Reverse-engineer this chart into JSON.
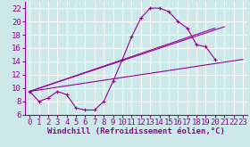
{
  "background_color": "#cce8e8",
  "grid_color": "#ffffff",
  "line_color": "#990099",
  "xlabel": "Windchill (Refroidissement éolien,°C)",
  "xlim": [
    -0.5,
    23.5
  ],
  "ylim": [
    6,
    23
  ],
  "xticks": [
    0,
    1,
    2,
    3,
    4,
    5,
    6,
    7,
    8,
    9,
    10,
    11,
    12,
    13,
    14,
    15,
    16,
    17,
    18,
    19,
    20,
    21,
    22,
    23
  ],
  "yticks": [
    6,
    8,
    10,
    12,
    14,
    16,
    18,
    20,
    22
  ],
  "curve_x": [
    0,
    1,
    2,
    3,
    4,
    5,
    6,
    7,
    8,
    9,
    10,
    11,
    12,
    13,
    14,
    15,
    16,
    17,
    18,
    19,
    20,
    21
  ],
  "curve_y": [
    9.5,
    8.0,
    8.5,
    9.5,
    9.0,
    7.0,
    6.7,
    6.7,
    8.0,
    11.0,
    14.3,
    17.7,
    20.5,
    22.0,
    22.0,
    21.5,
    20.0,
    19.0,
    16.5,
    16.2,
    14.3,
    null
  ],
  "line1_x": [
    0,
    23
  ],
  "line1_y": [
    9.5,
    14.3
  ],
  "line2_x": [
    0,
    21
  ],
  "line2_y": [
    9.5,
    19.2
  ],
  "line3_x": [
    0,
    20
  ],
  "line3_y": [
    9.5,
    19.0
  ],
  "font_size": 6.5,
  "figwidth": 2.8,
  "figheight": 1.65,
  "dpi": 100
}
